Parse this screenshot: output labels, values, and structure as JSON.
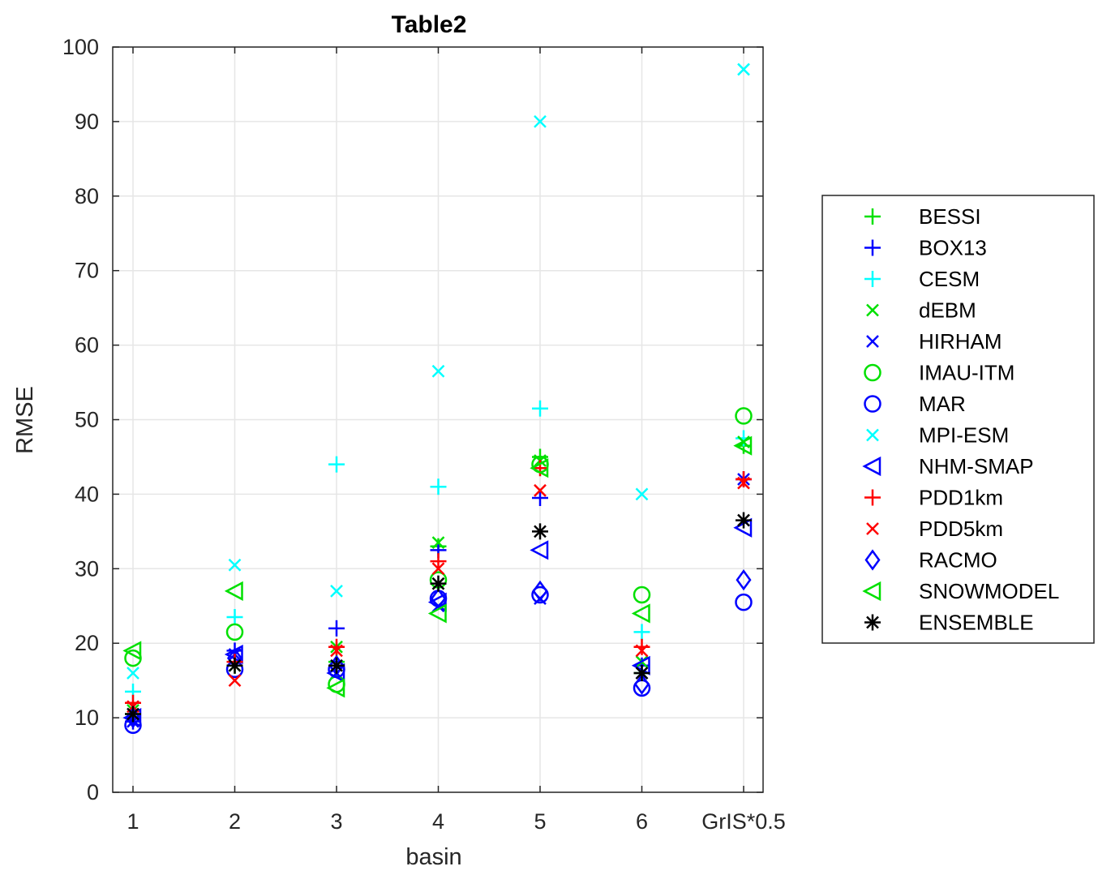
{
  "chart_data": {
    "type": "scatter",
    "title": "Table2",
    "xlabel": "basin",
    "ylabel": "RMSE",
    "ylim": [
      0,
      100
    ],
    "yticks": [
      0,
      10,
      20,
      30,
      40,
      50,
      60,
      70,
      80,
      90,
      100
    ],
    "categories": [
      "1",
      "2",
      "3",
      "4",
      "5",
      "6",
      "GrIS*0.5"
    ],
    "grid": true,
    "legend_position": "right",
    "series": [
      {
        "name": "BESSI",
        "marker": "plus",
        "color": "#00e000",
        "values": [
          10.5,
          17.0,
          17.5,
          33.0,
          45.0,
          16.0,
          46.5
        ]
      },
      {
        "name": "BOX13",
        "marker": "plus",
        "color": "#0000ff",
        "values": [
          9.5,
          19.0,
          22.0,
          32.5,
          39.5,
          17.0,
          42.0
        ]
      },
      {
        "name": "CESM",
        "marker": "plus",
        "color": "#00ffff",
        "values": [
          13.5,
          23.5,
          44.0,
          41.0,
          51.5,
          21.5,
          47.5
        ]
      },
      {
        "name": "dEBM",
        "marker": "x",
        "color": "#00e000",
        "values": [
          11.0,
          17.0,
          19.5,
          33.5,
          44.5,
          17.5,
          47.0
        ]
      },
      {
        "name": "HIRHAM",
        "marker": "x",
        "color": "#0000ff",
        "values": [
          9.5,
          18.5,
          16.0,
          25.0,
          26.0,
          16.0,
          42.0
        ]
      },
      {
        "name": "IMAU-ITM",
        "marker": "circle",
        "color": "#00e000",
        "values": [
          18.0,
          21.5,
          14.5,
          28.5,
          44.0,
          26.5,
          50.5
        ]
      },
      {
        "name": "MAR",
        "marker": "circle",
        "color": "#0000ff",
        "values": [
          9.0,
          16.5,
          16.5,
          26.0,
          26.5,
          14.0,
          25.5
        ]
      },
      {
        "name": "MPI-ESM",
        "marker": "x",
        "color": "#00ffff",
        "values": [
          16.0,
          30.5,
          27.0,
          56.5,
          90.0,
          40.0,
          97.0
        ]
      },
      {
        "name": "NHM-SMAP",
        "marker": "triangle",
        "color": "#0000ff",
        "values": [
          10.0,
          18.5,
          16.0,
          25.5,
          32.5,
          17.0,
          35.5
        ]
      },
      {
        "name": "PDD1km",
        "marker": "plus",
        "color": "#ff0000",
        "values": [
          12.0,
          17.5,
          19.5,
          31.0,
          43.5,
          19.5,
          42.0
        ]
      },
      {
        "name": "PDD5km",
        "marker": "x",
        "color": "#ff0000",
        "values": [
          11.5,
          15.0,
          19.0,
          30.0,
          40.5,
          19.0,
          41.5
        ]
      },
      {
        "name": "RACMO",
        "marker": "diamond",
        "color": "#0000ff",
        "values": [
          10.0,
          18.0,
          17.0,
          26.0,
          27.0,
          14.5,
          28.5
        ]
      },
      {
        "name": "SNOWMODEL",
        "marker": "triangle",
        "color": "#00e000",
        "values": [
          19.0,
          27.0,
          14.0,
          24.0,
          43.5,
          24.0,
          46.5
        ]
      },
      {
        "name": "ENSEMBLE",
        "marker": "asterisk",
        "color": "#000000",
        "values": [
          10.5,
          17.0,
          17.0,
          28.0,
          35.0,
          16.0,
          36.5
        ]
      }
    ]
  }
}
